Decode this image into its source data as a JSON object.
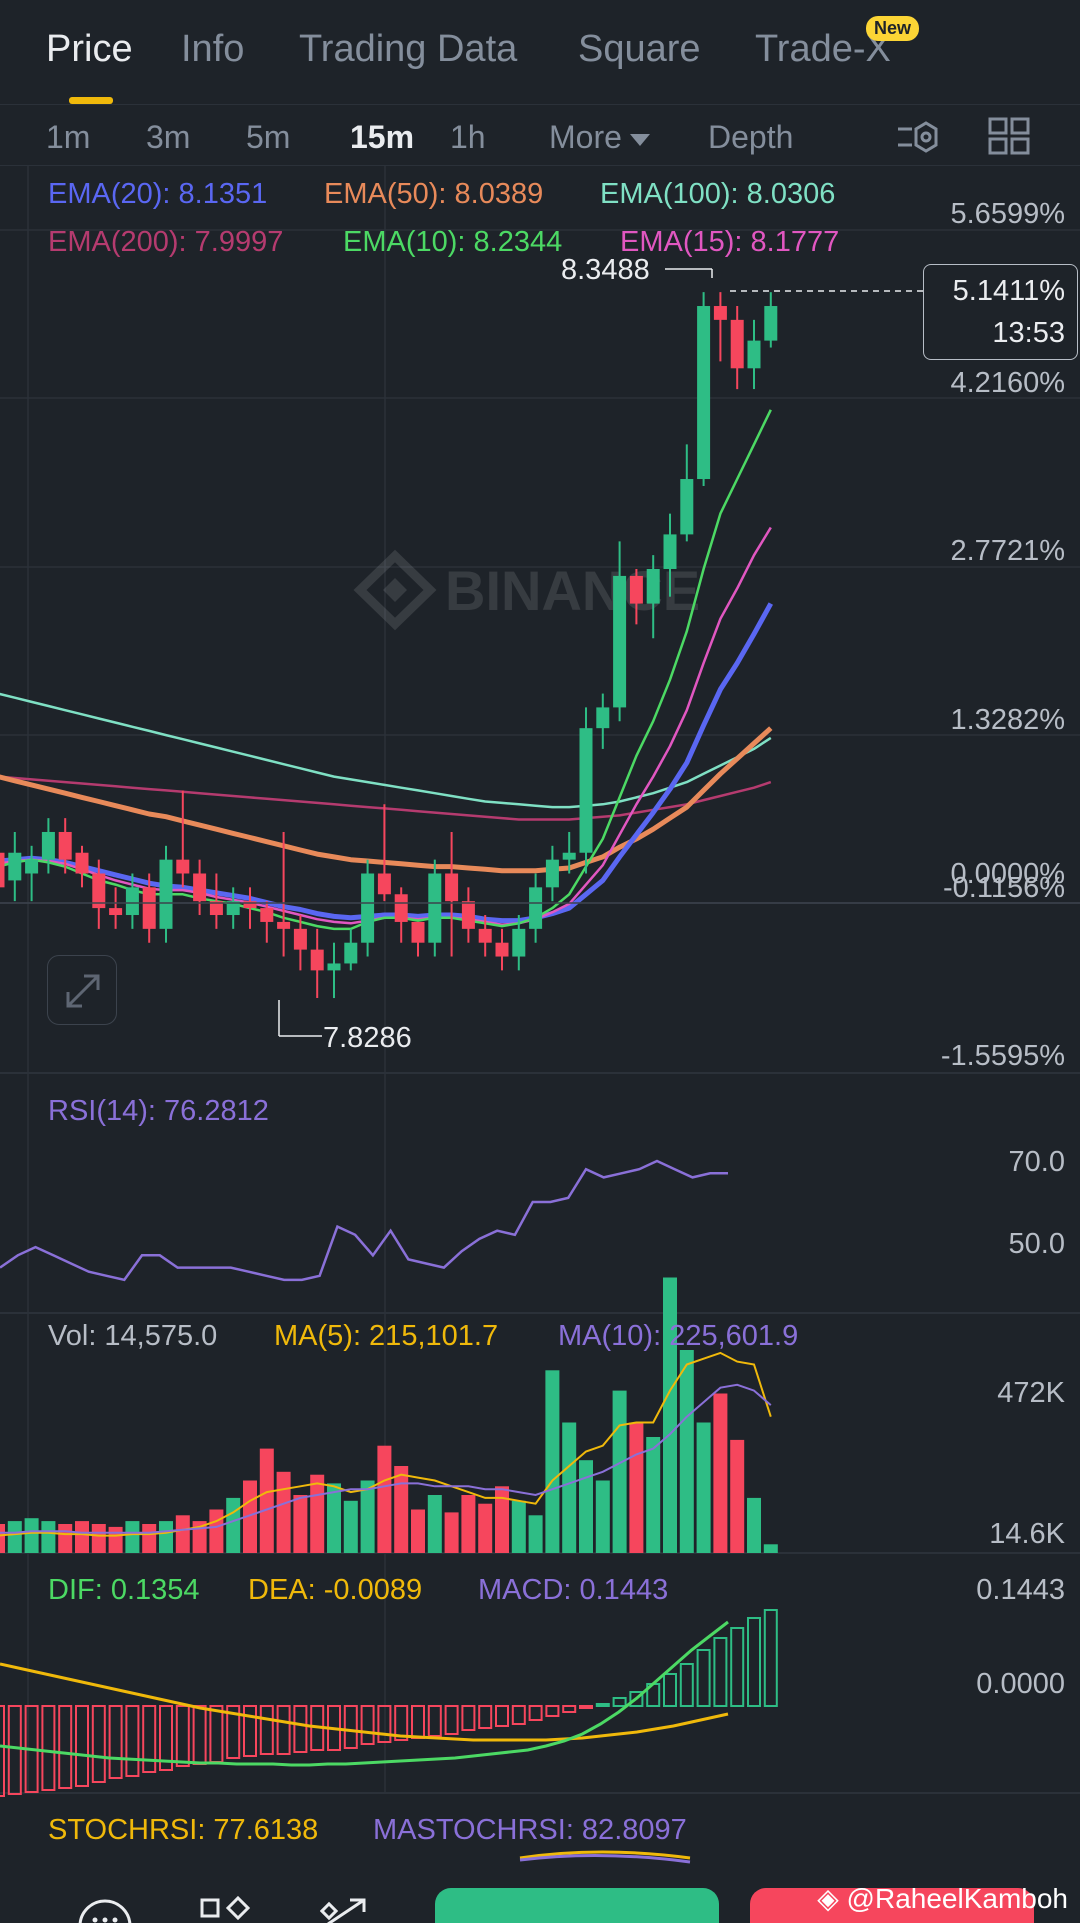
{
  "tabs": {
    "price": "Price",
    "info": "Info",
    "trading_data": "Trading Data",
    "square": "Square",
    "trade_x": "Trade-X",
    "new_badge": "New"
  },
  "intervals": {
    "m1": "1m",
    "m3": "3m",
    "m5": "5m",
    "m15": "15m",
    "h1": "1h",
    "more": "More",
    "depth": "Depth"
  },
  "ema_legend": {
    "ema20": "EMA(20): 8.1351",
    "ema50": "EMA(50): 8.0389",
    "ema100": "EMA(100): 8.0306",
    "ema200": "EMA(200): 7.9997",
    "ema10": "EMA(10): 8.2344",
    "ema15": "EMA(15): 8.1777"
  },
  "price_axis": {
    "t1": "5.6599%",
    "t2": "4.2160%",
    "t3": "2.7721%",
    "t4": "1.3282%",
    "t5": "0.0000%",
    "t6": "-0.1156%",
    "t7": "-1.5595%"
  },
  "current_price": {
    "pct": "5.1411%",
    "countdown": "13:53"
  },
  "markers": {
    "high": "8.3488",
    "low": "7.8286"
  },
  "watermark": "BINANCE",
  "rsi": {
    "legend": "RSI(14): 76.2812",
    "t_70": "70.0",
    "t_50": "50.0",
    "values": [
      44,
      47,
      49,
      47,
      45,
      43,
      42,
      41,
      47,
      47,
      44,
      44,
      44,
      44,
      43,
      42,
      41,
      41,
      42,
      54,
      52,
      47,
      53,
      46,
      45,
      44,
      48,
      51,
      53,
      52,
      60,
      60,
      61,
      68,
      66,
      67,
      68,
      70,
      68,
      66,
      67,
      67
    ]
  },
  "volume": {
    "vol": "Vol: 14,575.0",
    "ma5": "MA(5): 215,101.7",
    "ma10": "MA(10): 225,601.9",
    "t_max": "472K",
    "t_min": "14.6K"
  },
  "macd": {
    "dif": "DIF: 0.1354",
    "dea": "DEA: -0.0089",
    "macd": "MACD: 0.1443",
    "t_max": "0.1443",
    "t_zero": "0.0000"
  },
  "stoch": {
    "stochrsi": "STOCHRSI: 77.6138",
    "mastochrsi": "MASTOCHRSI: 82.8097"
  },
  "attribution": "@RaheelKamboh",
  "colors": {
    "up": "#2ebd85",
    "down": "#f6465d",
    "ema20": "#5a67f2",
    "ema50": "#e88a5a",
    "ema100": "#7fe0c4",
    "ema200": "#b53b6f",
    "ema10": "#4cd964",
    "ema15": "#e157c1",
    "rsi": "#8a70d8",
    "ma5": "#f0b90b",
    "ma10": "#8a70d8"
  },
  "chart_data": {
    "type": "candlestick",
    "interval": "15m",
    "ylim": [
      7.8,
      8.4
    ],
    "candles": [
      [
        7.935,
        7.94,
        7.9,
        7.91
      ],
      [
        7.915,
        7.95,
        7.9,
        7.935
      ],
      [
        7.92,
        7.94,
        7.9,
        7.93
      ],
      [
        7.93,
        7.96,
        7.92,
        7.95
      ],
      [
        7.95,
        7.96,
        7.92,
        7.93
      ],
      [
        7.935,
        7.94,
        7.91,
        7.92
      ],
      [
        7.92,
        7.93,
        7.88,
        7.895
      ],
      [
        7.895,
        7.91,
        7.88,
        7.89
      ],
      [
        7.89,
        7.92,
        7.88,
        7.91
      ],
      [
        7.91,
        7.92,
        7.87,
        7.88
      ],
      [
        7.88,
        7.94,
        7.87,
        7.93
      ],
      [
        7.93,
        7.98,
        7.91,
        7.92
      ],
      [
        7.92,
        7.93,
        7.89,
        7.9
      ],
      [
        7.9,
        7.92,
        7.88,
        7.89
      ],
      [
        7.89,
        7.91,
        7.88,
        7.9
      ],
      [
        7.9,
        7.91,
        7.88,
        7.895
      ],
      [
        7.895,
        7.9,
        7.87,
        7.885
      ],
      [
        7.885,
        7.95,
        7.86,
        7.88
      ],
      [
        7.88,
        7.89,
        7.85,
        7.865
      ],
      [
        7.865,
        7.88,
        7.83,
        7.85
      ],
      [
        7.85,
        7.87,
        7.83,
        7.855
      ],
      [
        7.855,
        7.88,
        7.85,
        7.87
      ],
      [
        7.87,
        7.93,
        7.86,
        7.92
      ],
      [
        7.92,
        7.97,
        7.9,
        7.905
      ],
      [
        7.905,
        7.91,
        7.87,
        7.885
      ],
      [
        7.885,
        7.88,
        7.86,
        7.87
      ],
      [
        7.87,
        7.93,
        7.86,
        7.92
      ],
      [
        7.92,
        7.95,
        7.86,
        7.9
      ],
      [
        7.9,
        7.91,
        7.87,
        7.88
      ],
      [
        7.88,
        7.89,
        7.86,
        7.87
      ],
      [
        7.87,
        7.88,
        7.85,
        7.86
      ],
      [
        7.86,
        7.89,
        7.85,
        7.88
      ],
      [
        7.88,
        7.92,
        7.87,
        7.91
      ],
      [
        7.91,
        7.94,
        7.9,
        7.93
      ],
      [
        7.93,
        7.95,
        7.92,
        7.935
      ],
      [
        7.935,
        8.04,
        7.92,
        8.025
      ],
      [
        8.025,
        8.05,
        8.01,
        8.04
      ],
      [
        8.04,
        8.16,
        8.03,
        8.135
      ],
      [
        8.135,
        8.14,
        8.1,
        8.115
      ],
      [
        8.115,
        8.15,
        8.09,
        8.14
      ],
      [
        8.14,
        8.18,
        8.12,
        8.165
      ],
      [
        8.165,
        8.23,
        8.16,
        8.205
      ],
      [
        8.205,
        8.34,
        8.2,
        8.33
      ],
      [
        8.33,
        8.34,
        8.29,
        8.32
      ],
      [
        8.32,
        8.33,
        8.27,
        8.285
      ],
      [
        8.285,
        8.32,
        8.27,
        8.305
      ],
      [
        8.305,
        8.34,
        8.3,
        8.33
      ]
    ],
    "ema10": [
      7.925,
      7.928,
      7.93,
      7.928,
      7.925,
      7.92,
      7.915,
      7.912,
      7.908,
      7.905,
      7.905,
      7.905,
      7.902,
      7.9,
      7.898,
      7.895,
      7.892,
      7.888,
      7.885,
      7.882,
      7.88,
      7.88,
      7.885,
      7.888,
      7.888,
      7.886,
      7.888,
      7.888,
      7.886,
      7.884,
      7.882,
      7.884,
      7.888,
      7.895,
      7.905,
      7.925,
      7.945,
      7.975,
      8.005,
      8.03,
      8.06,
      8.095,
      8.14,
      8.18,
      8.205,
      8.23,
      8.255
    ],
    "ema15": [
      7.927,
      7.929,
      7.93,
      7.929,
      7.927,
      7.923,
      7.919,
      7.915,
      7.912,
      7.909,
      7.908,
      7.908,
      7.906,
      7.903,
      7.901,
      7.899,
      7.896,
      7.893,
      7.89,
      7.887,
      7.885,
      7.884,
      7.886,
      7.888,
      7.888,
      7.887,
      7.888,
      7.888,
      7.887,
      7.885,
      7.883,
      7.884,
      7.887,
      7.892,
      7.898,
      7.912,
      7.926,
      7.948,
      7.97,
      7.99,
      8.012,
      8.038,
      8.072,
      8.104,
      8.126,
      8.15,
      8.17
    ],
    "ema20": [
      7.929,
      7.93,
      7.931,
      7.93,
      7.928,
      7.925,
      7.922,
      7.919,
      7.916,
      7.913,
      7.911,
      7.91,
      7.908,
      7.906,
      7.904,
      7.902,
      7.899,
      7.896,
      7.894,
      7.891,
      7.889,
      7.888,
      7.889,
      7.89,
      7.89,
      7.889,
      7.89,
      7.89,
      7.889,
      7.887,
      7.886,
      7.886,
      7.888,
      7.891,
      7.895,
      7.905,
      7.915,
      7.932,
      7.948,
      7.964,
      7.981,
      8.0,
      8.027,
      8.053,
      8.072,
      8.093,
      8.115
    ],
    "ema50": [
      7.99,
      7.987,
      7.984,
      7.981,
      7.978,
      7.975,
      7.972,
      7.969,
      7.966,
      7.963,
      7.961,
      7.958,
      7.955,
      7.952,
      7.949,
      7.946,
      7.943,
      7.94,
      7.937,
      7.934,
      7.932,
      7.93,
      7.929,
      7.928,
      7.927,
      7.926,
      7.925,
      7.925,
      7.924,
      7.923,
      7.922,
      7.922,
      7.922,
      7.923,
      7.924,
      7.928,
      7.932,
      7.939,
      7.945,
      7.952,
      7.96,
      7.968,
      7.98,
      7.992,
      8.003,
      8.014,
      8.025
    ],
    "ema100": [
      8.05,
      8.047,
      8.044,
      8.041,
      8.038,
      8.035,
      8.032,
      8.029,
      8.026,
      8.023,
      8.02,
      8.017,
      8.014,
      8.011,
      8.008,
      8.005,
      8.002,
      7.999,
      7.996,
      7.993,
      7.99,
      7.988,
      7.986,
      7.984,
      7.982,
      7.98,
      7.978,
      7.976,
      7.974,
      7.972,
      7.971,
      7.97,
      7.969,
      7.968,
      7.968,
      7.969,
      7.97,
      7.972,
      7.975,
      7.978,
      7.982,
      7.986,
      7.992,
      7.998,
      8.004,
      8.01,
      8.018
    ],
    "ema200": [
      7.99,
      7.989,
      7.988,
      7.987,
      7.986,
      7.985,
      7.984,
      7.983,
      7.982,
      7.981,
      7.98,
      7.979,
      7.978,
      7.977,
      7.976,
      7.975,
      7.974,
      7.973,
      7.972,
      7.971,
      7.97,
      7.969,
      7.968,
      7.967,
      7.966,
      7.965,
      7.964,
      7.963,
      7.962,
      7.961,
      7.96,
      7.959,
      7.959,
      7.959,
      7.959,
      7.96,
      7.961,
      7.962,
      7.964,
      7.966,
      7.968,
      7.97,
      7.973,
      7.976,
      7.979,
      7.982,
      7.986
    ]
  }
}
